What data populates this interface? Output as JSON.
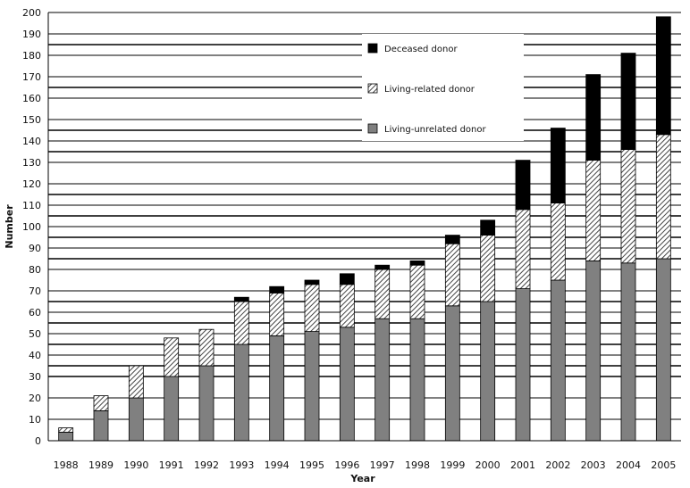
{
  "chart_data": {
    "type": "bar",
    "stacked": true,
    "title": "",
    "xlabel": "Year",
    "ylabel": "Number",
    "ylim": [
      0,
      200
    ],
    "yticks": [
      0,
      10,
      20,
      30,
      40,
      50,
      60,
      70,
      80,
      90,
      100,
      110,
      120,
      130,
      140,
      150,
      160,
      170,
      180,
      190,
      200
    ],
    "grid": true,
    "legend_position": "top-right",
    "categories": [
      "1988",
      "1989",
      "1990",
      "1991",
      "1992",
      "1993",
      "1994",
      "1995",
      "1996",
      "1997",
      "1998",
      "1999",
      "2000",
      "2001",
      "2002",
      "2003",
      "2004",
      "2005"
    ],
    "series": [
      {
        "name": "Living-unrelated donor",
        "color": "#808080",
        "pattern": "solid",
        "values": [
          4,
          14,
          20,
          30,
          35,
          45,
          49,
          51,
          53,
          57,
          57,
          63,
          65,
          71,
          75,
          84,
          83,
          85
        ]
      },
      {
        "name": "Living-related donor",
        "color": "#555555",
        "pattern": "hatch",
        "values": [
          2,
          7,
          15,
          18,
          17,
          20,
          20,
          22,
          20,
          23,
          25,
          29,
          31,
          37,
          36,
          47,
          53,
          58
        ]
      },
      {
        "name": "Deceased donor",
        "color": "#000000",
        "pattern": "solid",
        "values": [
          0,
          0,
          0,
          0,
          0,
          2,
          3,
          2,
          5,
          2,
          2,
          4,
          7,
          23,
          35,
          40,
          45,
          55
        ]
      }
    ],
    "legend_order": [
      "Deceased donor",
      "Living-related donor",
      "Living-unrelated donor"
    ]
  }
}
